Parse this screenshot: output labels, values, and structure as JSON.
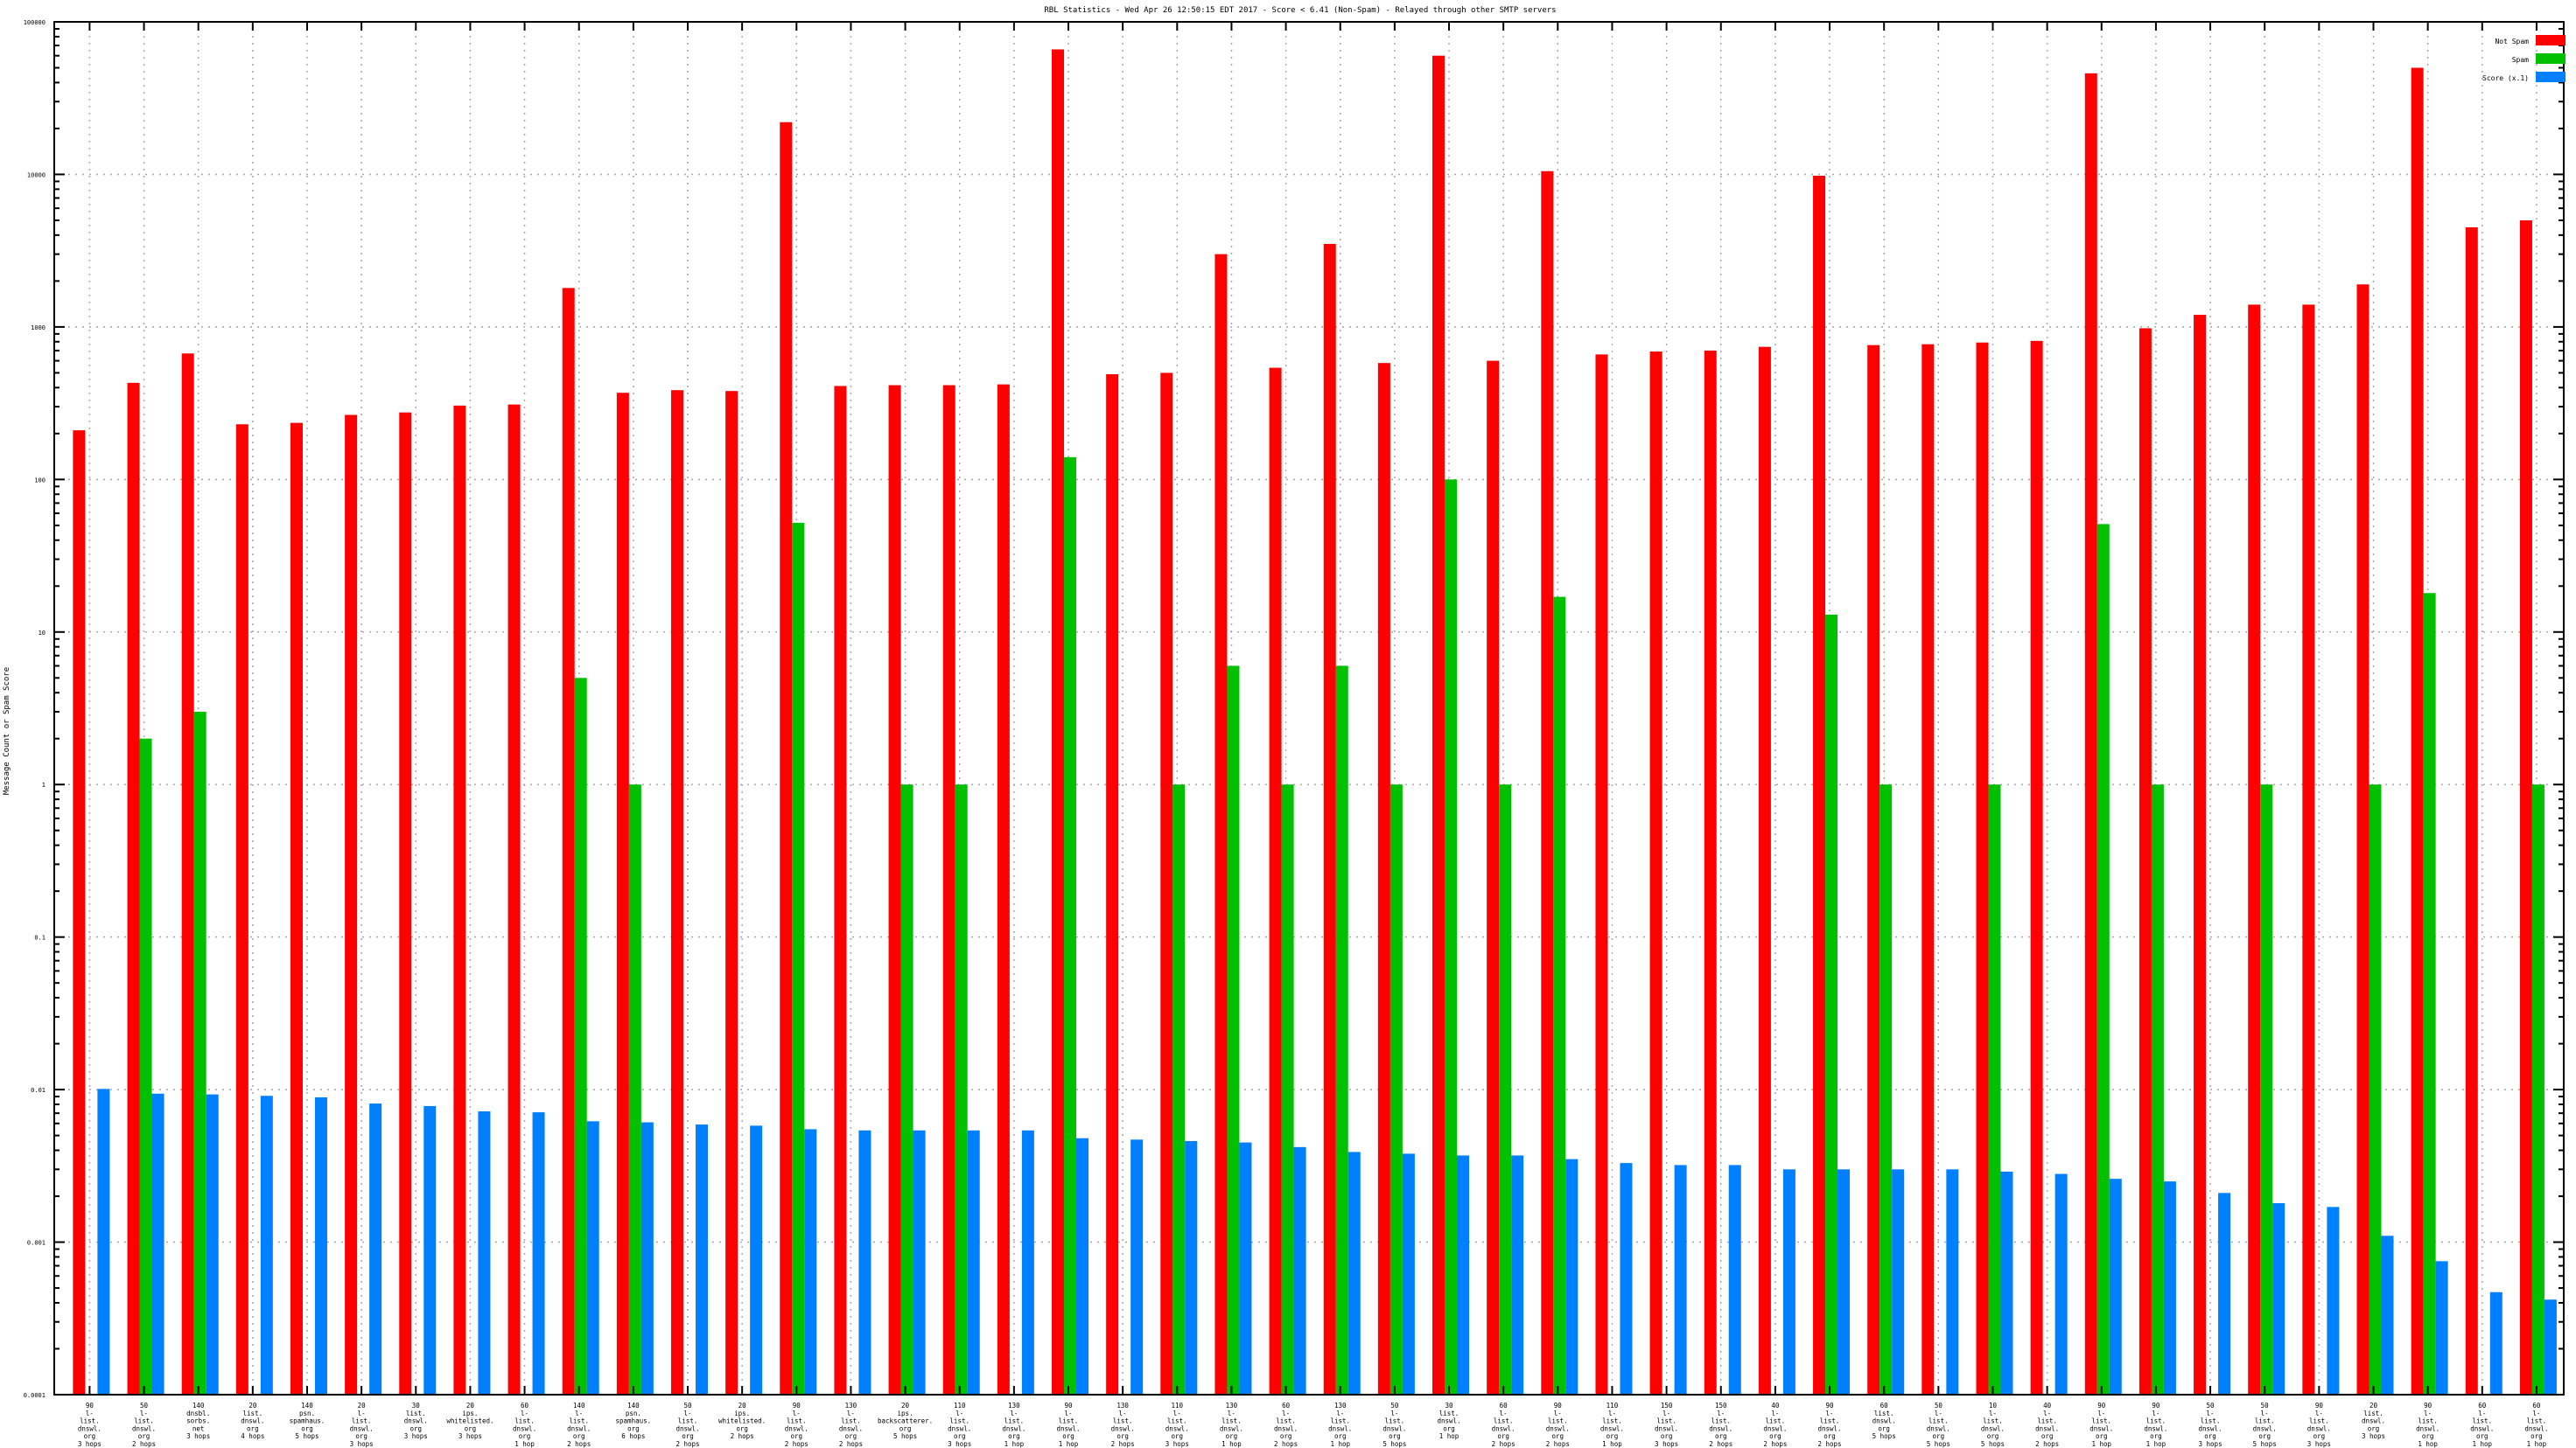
{
  "chart_data": {
    "type": "bar",
    "title": "RBL Statistics - Wed Apr 26 12:50:15 EDT 2017 - Score < 6.41 (Non-Spam) - Relayed through other SMTP servers",
    "ylabel": "Message Count or Spam Score",
    "xlabel": "",
    "yscale": "log",
    "ylim": [
      0.0001,
      100000
    ],
    "ytick_labels": [
      "0.0001",
      "0.001",
      "0.01",
      "0.1",
      "1",
      "10",
      "100",
      "1000",
      "10000",
      "100000"
    ],
    "grid": true,
    "legend_position": "top-right",
    "categories": [
      [
        "90",
        "l-",
        "list.",
        "dnswl.",
        "org",
        "3 hops"
      ],
      [
        "50",
        "l-",
        "list.",
        "dnswl.",
        "org",
        "2 hops"
      ],
      [
        "140",
        "dnsbl.",
        "sorbs.",
        "net",
        "3 hops"
      ],
      [
        "20",
        "list.",
        "dnswl.",
        "org",
        "4 hops"
      ],
      [
        "140",
        "psn.",
        "spamhaus.",
        "org",
        "5 hops"
      ],
      [
        "20",
        "l-",
        "list.",
        "dnswl.",
        "org",
        "3 hops"
      ],
      [
        "30",
        "list.",
        "dnswl.",
        "org",
        "3 hops"
      ],
      [
        "20",
        "ips.",
        "whitelisted.",
        "org",
        "3 hops"
      ],
      [
        "60",
        "l-",
        "list.",
        "dnswl.",
        "org",
        "1 hop"
      ],
      [
        "140",
        "l-",
        "list.",
        "dnswl.",
        "org",
        "2 hops"
      ],
      [
        "140",
        "psn.",
        "spamhaus.",
        "org",
        "6 hops"
      ],
      [
        "50",
        "l-",
        "list.",
        "dnswl.",
        "org",
        "2 hops"
      ],
      [
        "20",
        "ips.",
        "whitelisted.",
        "org",
        "2 hops"
      ],
      [
        "90",
        "l-",
        "list.",
        "dnswl.",
        "org",
        "2 hops"
      ],
      [
        "130",
        "l-",
        "list.",
        "dnswl.",
        "org",
        "2 hops"
      ],
      [
        "20",
        "ips.",
        "backscatterer.",
        "org",
        "5 hops"
      ],
      [
        "110",
        "l-",
        "list.",
        "dnswl.",
        "org",
        "3 hops"
      ],
      [
        "130",
        "l-",
        "list.",
        "dnswl.",
        "org",
        "1 hop"
      ],
      [
        "90",
        "l-",
        "list.",
        "dnswl.",
        "org",
        "1 hop"
      ],
      [
        "130",
        "l-",
        "list.",
        "dnswl.",
        "org",
        "2 hops"
      ],
      [
        "110",
        "l-",
        "list.",
        "dnswl.",
        "org",
        "3 hops"
      ],
      [
        "130",
        "l-",
        "list.",
        "dnswl.",
        "org",
        "1 hop"
      ],
      [
        "60",
        "l-",
        "list.",
        "dnswl.",
        "org",
        "2 hops"
      ],
      [
        "130",
        "l-",
        "list.",
        "dnswl.",
        "org",
        "1 hop"
      ],
      [
        "50",
        "l-",
        "list.",
        "dnswl.",
        "org",
        "5 hops"
      ],
      [
        "30",
        "list.",
        "dnswl.",
        "org",
        "1 hop"
      ],
      [
        "60",
        "l-",
        "list.",
        "dnswl.",
        "org",
        "2 hops"
      ],
      [
        "90",
        "l-",
        "list.",
        "dnswl.",
        "org",
        "2 hops"
      ],
      [
        "110",
        "l-",
        "list.",
        "dnswl.",
        "org",
        "1 hop"
      ],
      [
        "150",
        "l-",
        "list.",
        "dnswl.",
        "org",
        "3 hops"
      ],
      [
        "150",
        "l-",
        "list.",
        "dnswl.",
        "org",
        "2 hops"
      ],
      [
        "40",
        "l-",
        "list.",
        "dnswl.",
        "org",
        "2 hops"
      ],
      [
        "90",
        "l-",
        "list.",
        "dnswl.",
        "org",
        "2 hops"
      ],
      [
        "60",
        "list.",
        "dnswl.",
        "org",
        "5 hops"
      ],
      [
        "50",
        "l-",
        "list.",
        "dnswl.",
        "org",
        "5 hops"
      ],
      [
        "10",
        "l-",
        "list.",
        "dnswl.",
        "org",
        "5 hops"
      ],
      [
        "40",
        "l-",
        "list.",
        "dnswl.",
        "org",
        "2 hops"
      ],
      [
        "90",
        "l-",
        "list.",
        "dnswl.",
        "org",
        "1 hop"
      ],
      [
        "90",
        "l-",
        "list.",
        "dnswl.",
        "org",
        "1 hop"
      ],
      [
        "50",
        "l-",
        "list.",
        "dnswl.",
        "org",
        "3 hops"
      ],
      [
        "50",
        "l-",
        "list.",
        "dnswl.",
        "org",
        "5 hops"
      ],
      [
        "90",
        "l-",
        "list.",
        "dnswl.",
        "org",
        "3 hops"
      ],
      [
        "20",
        "list.",
        "dnswl.",
        "org",
        "3 hops"
      ],
      [
        "90",
        "l-",
        "list.",
        "dnswl.",
        "org",
        "1 hop"
      ],
      [
        "60",
        "l-",
        "list.",
        "dnswl.",
        "org",
        "1 hop"
      ],
      [
        "60",
        "l-",
        "list.",
        "dnswl.",
        "org",
        "1 hop"
      ]
    ],
    "series": [
      {
        "name": "Not Spam",
        "color": "#ff0000",
        "values": [
          210,
          430,
          670,
          230,
          235,
          265,
          275,
          305,
          310,
          1800,
          370,
          385,
          380,
          22000,
          410,
          415,
          415,
          420,
          66000,
          490,
          500,
          3000,
          540,
          3500,
          580,
          60000,
          600,
          10500,
          660,
          690,
          700,
          740,
          9800,
          760,
          770,
          790,
          810,
          46000,
          980,
          1200,
          1400,
          1400,
          1900,
          50000,
          4500,
          5000
        ]
      },
      {
        "name": "Spam",
        "color": "#00c000",
        "values": [
          null,
          2,
          3,
          null,
          null,
          null,
          null,
          null,
          null,
          5,
          1,
          null,
          null,
          52,
          null,
          1,
          1,
          null,
          140,
          null,
          1,
          6,
          1,
          6,
          1,
          100,
          1,
          17,
          null,
          null,
          null,
          null,
          13,
          1,
          null,
          1,
          null,
          51,
          1,
          null,
          1,
          null,
          1,
          18,
          null,
          1
        ]
      },
      {
        "name": "Score (x.1)",
        "color": "#0080ff",
        "values": [
          0.0101,
          0.0094,
          0.0093,
          0.0091,
          0.0089,
          0.0081,
          0.0078,
          0.0072,
          0.0071,
          0.0062,
          0.0061,
          0.0059,
          0.0058,
          0.0055,
          0.0054,
          0.0054,
          0.0054,
          0.0054,
          0.0048,
          0.0047,
          0.0046,
          0.0045,
          0.0042,
          0.0039,
          0.0038,
          0.0037,
          0.0037,
          0.0035,
          0.0033,
          0.0032,
          0.0032,
          0.003,
          0.003,
          0.003,
          0.003,
          0.0029,
          0.0028,
          0.0026,
          0.0025,
          0.0021,
          0.0018,
          0.0017,
          0.0011,
          0.00075,
          0.00047,
          0.00042
        ]
      }
    ]
  }
}
